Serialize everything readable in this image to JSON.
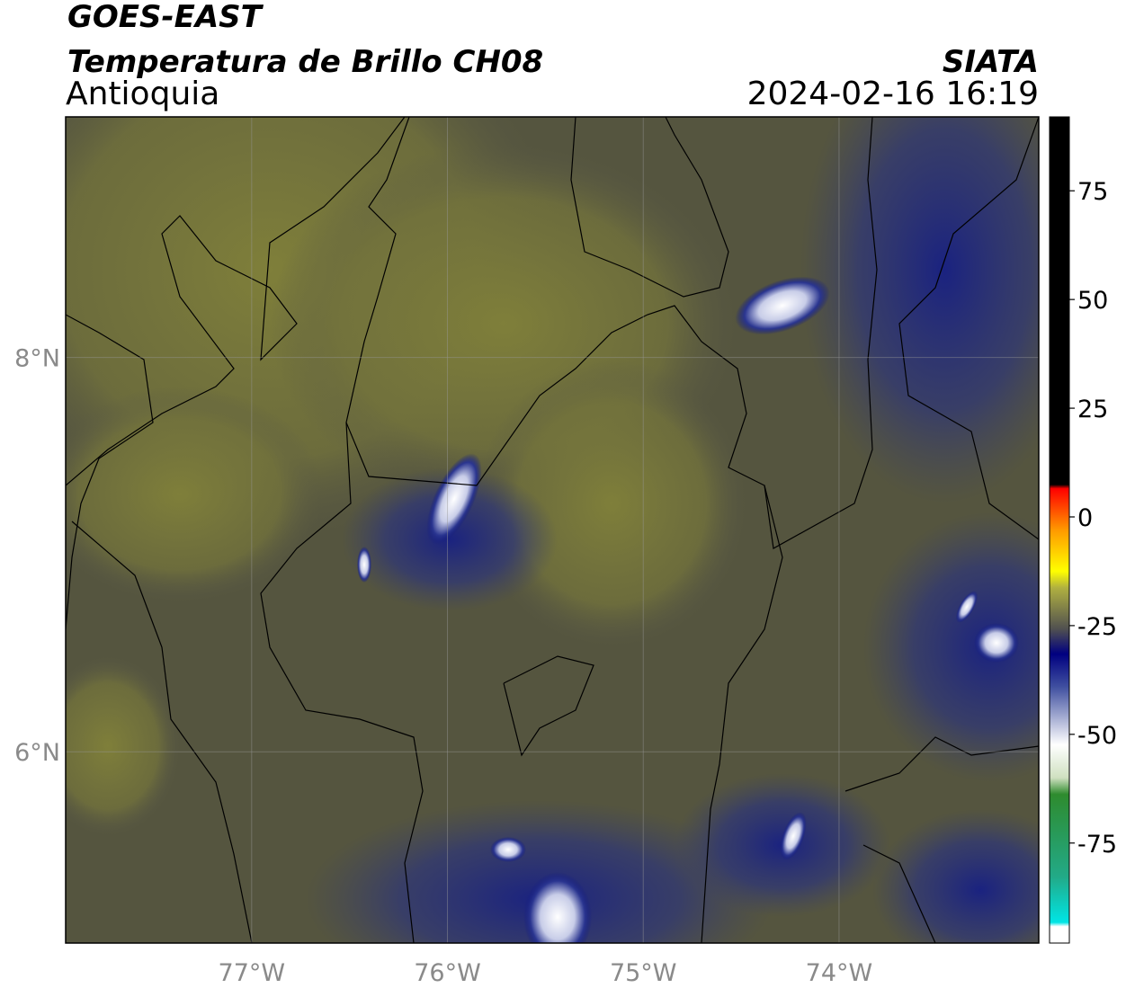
{
  "header": {
    "title": "GOES-EAST",
    "subtitle": "Temperatura de Brillo CH08",
    "region": "Antioquia",
    "source": "SIATA",
    "datetime": "2024-02-16 16:19"
  },
  "map": {
    "xlim": [
      -77.95,
      -72.98
    ],
    "ylim": [
      5.03,
      9.22
    ],
    "xticks": [
      {
        "value": -77,
        "label": "77°W"
      },
      {
        "value": -76,
        "label": "76°W"
      },
      {
        "value": -75,
        "label": "75°W"
      },
      {
        "value": -74,
        "label": "74°W"
      }
    ],
    "yticks": [
      {
        "value": 8,
        "label": "8°N"
      },
      {
        "value": 6,
        "label": "6°N"
      }
    ],
    "grid": true
  },
  "colorbar": {
    "lim": [
      -98,
      92
    ],
    "ticks": [
      75,
      50,
      25,
      0,
      -25,
      -50,
      -75
    ]
  }
}
